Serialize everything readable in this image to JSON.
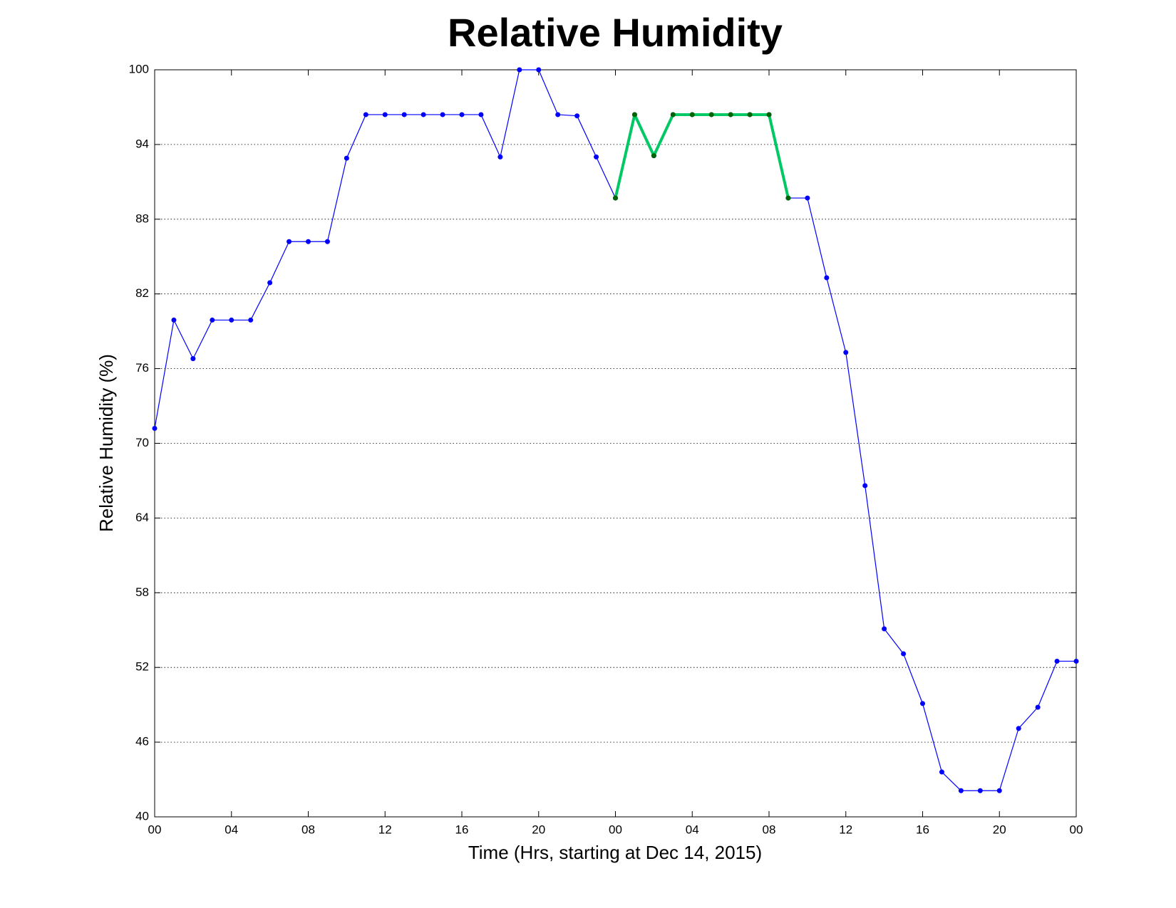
{
  "chart_data": {
    "type": "line",
    "title": "Relative Humidity",
    "xlabel": "Time (Hrs, starting at Dec 14, 2015)",
    "ylabel": "Relative Humidity (%)",
    "x": [
      0,
      1,
      2,
      3,
      4,
      5,
      6,
      7,
      8,
      9,
      10,
      11,
      12,
      13,
      14,
      15,
      16,
      17,
      18,
      19,
      20,
      21,
      22,
      23,
      24,
      25,
      26,
      27,
      28,
      29,
      30,
      31,
      32,
      33,
      34,
      35,
      36,
      37,
      38,
      39,
      40,
      41,
      42,
      43,
      44,
      45,
      46,
      47,
      48
    ],
    "series": [
      {
        "color": "#0000ff",
        "marker_color": "#0000ff",
        "line_width": 1.2,
        "values": [
          71.2,
          79.9,
          76.8,
          79.9,
          79.9,
          79.9,
          82.9,
          86.2,
          86.2,
          86.2,
          92.9,
          96.4,
          96.4,
          96.4,
          96.4,
          96.4,
          96.4,
          96.4,
          93.0,
          100,
          100,
          96.4,
          96.3,
          93.0,
          89.7,
          96.4,
          93.1,
          96.4,
          96.4,
          96.4,
          96.4,
          96.4,
          96.4,
          89.7,
          89.7,
          83.3,
          77.3,
          66.6,
          55.1,
          53.1,
          49.1,
          43.6,
          42.1,
          42.1,
          42.1,
          47.1,
          48.8,
          52.5,
          52.5
        ]
      },
      {
        "color": "#00c864",
        "marker_color": "#006400",
        "line_width": 4,
        "values": [
          null,
          null,
          null,
          null,
          null,
          null,
          null,
          null,
          null,
          null,
          null,
          null,
          null,
          null,
          null,
          null,
          null,
          null,
          null,
          null,
          null,
          null,
          null,
          null,
          89.7,
          96.4,
          93.1,
          96.4,
          96.4,
          96.4,
          96.4,
          96.4,
          96.4,
          89.7,
          null,
          null,
          null,
          null,
          null,
          null,
          null,
          null,
          null,
          null,
          null,
          null,
          null,
          null,
          null
        ]
      }
    ],
    "xlim": [
      0,
      48
    ],
    "ylim": [
      40,
      100
    ],
    "xticks": [
      {
        "value": 0,
        "label": "00"
      },
      {
        "value": 4,
        "label": "04"
      },
      {
        "value": 8,
        "label": "08"
      },
      {
        "value": 12,
        "label": "12"
      },
      {
        "value": 16,
        "label": "16"
      },
      {
        "value": 20,
        "label": "20"
      },
      {
        "value": 24,
        "label": "00"
      },
      {
        "value": 28,
        "label": "04"
      },
      {
        "value": 32,
        "label": "08"
      },
      {
        "value": 36,
        "label": "12"
      },
      {
        "value": 40,
        "label": "16"
      },
      {
        "value": 44,
        "label": "20"
      },
      {
        "value": 48,
        "label": "00"
      }
    ],
    "yticks": [
      40,
      46,
      52,
      58,
      64,
      70,
      76,
      82,
      88,
      94,
      100
    ],
    "grid": true
  }
}
